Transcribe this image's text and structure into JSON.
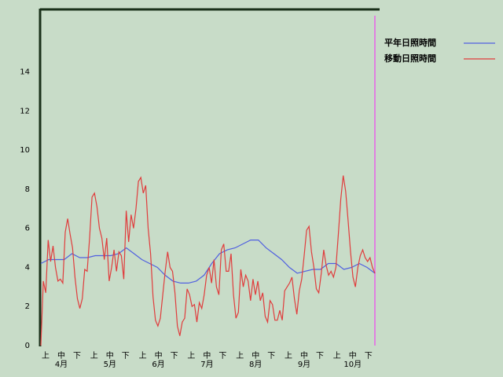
{
  "chart_data": {
    "type": "line",
    "ylim": [
      0,
      17.2
    ],
    "yticks": [
      0,
      2,
      4,
      6,
      8,
      10,
      12,
      14
    ],
    "dekad_labels": [
      "上",
      "中",
      "下",
      "上",
      "中",
      "下",
      "上",
      "中",
      "下",
      "上",
      "中",
      "下",
      "上",
      "中",
      "下",
      "上",
      "中",
      "下",
      "上",
      "中",
      "下"
    ],
    "month_labels": [
      "4月",
      "5月",
      "6月",
      "7月",
      "8月",
      "9月",
      "10月"
    ],
    "series": [
      {
        "name": "平年日照時間",
        "color": "#5060e0",
        "values": [
          4.2,
          4.4,
          4.4,
          4.4,
          4.7,
          4.5,
          4.5,
          4.6,
          4.6,
          4.6,
          4.7,
          5.0,
          4.7,
          4.4,
          4.2,
          4.0,
          3.6,
          3.3,
          3.2,
          3.2,
          3.3,
          3.6,
          4.2,
          4.7,
          4.9,
          5.0,
          5.2,
          5.4,
          5.4,
          5.0,
          4.7,
          4.4,
          4.0,
          3.7,
          3.8,
          3.9,
          3.9,
          4.2,
          4.2,
          3.9,
          4.0,
          4.2,
          4.0,
          3.7
        ]
      },
      {
        "name": "移動日照時間",
        "color": "#e03c3c",
        "values": [
          0,
          3.3,
          2.7,
          5.4,
          4.3,
          5.1,
          4.0,
          3.3,
          3.4,
          3.2,
          5.8,
          6.5,
          5.7,
          5.0,
          3.5,
          2.4,
          1.9,
          2.4,
          3.9,
          3.8,
          5.5,
          7.6,
          7.8,
          7.1,
          6.0,
          5.5,
          4.4,
          5.5,
          3.3,
          4.0,
          4.9,
          3.8,
          4.8,
          4.6,
          3.4,
          6.9,
          5.3,
          6.7,
          6.0,
          7.0,
          8.4,
          8.6,
          7.8,
          8.2,
          6.0,
          4.7,
          2.5,
          1.3,
          1.0,
          1.4,
          2.6,
          3.8,
          4.8,
          4.0,
          3.8,
          2.7,
          1.0,
          0.5,
          1.2,
          1.4,
          2.9,
          2.6,
          2.0,
          2.1,
          1.2,
          2.2,
          1.9,
          2.6,
          3.6,
          4.0,
          3.2,
          4.4,
          3.0,
          2.6,
          4.9,
          5.2,
          3.8,
          3.8,
          4.7,
          2.6,
          1.4,
          1.7,
          3.9,
          3.0,
          3.6,
          3.3,
          2.3,
          3.4,
          2.6,
          3.3,
          2.3,
          2.7,
          1.5,
          1.2,
          2.3,
          2.1,
          1.3,
          1.3,
          1.8,
          1.3,
          2.8,
          3.0,
          3.2,
          3.5,
          2.4,
          1.6,
          2.8,
          3.4,
          4.6,
          5.9,
          6.1,
          4.8,
          4.0,
          2.9,
          2.7,
          3.7,
          4.9,
          4.1,
          3.6,
          3.8,
          3.5,
          4.0,
          5.7,
          7.5,
          8.7,
          7.9,
          6.4,
          4.8,
          3.5,
          3.0,
          4.0,
          4.6,
          4.9,
          4.5,
          4.3,
          4.5,
          4.0,
          3.7
        ]
      }
    ]
  }
}
